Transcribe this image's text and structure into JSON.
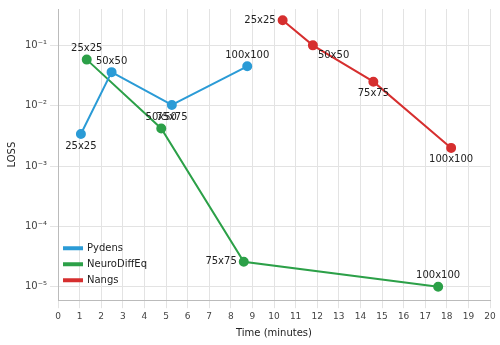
{
  "chart_data": {
    "type": "line",
    "x_label": "Time (minutes)",
    "y_label": "LOSS",
    "log": "y",
    "grid": true,
    "legend": "upper right",
    "marker": "circle",
    "xlim": [
      0,
      20
    ],
    "xticks": [
      0,
      1,
      2,
      3,
      4,
      5,
      6,
      7,
      8,
      9,
      10,
      11,
      12,
      13,
      14,
      15,
      16,
      17,
      18,
      19,
      20
    ],
    "ylim": [
      6e-06,
      0.4
    ],
    "yticks": [
      {
        "value": 1e-05,
        "label": "10⁻⁵"
      },
      {
        "value": 0.0001,
        "label": "10⁻⁴"
      },
      {
        "value": 0.001,
        "label": "10⁻³"
      },
      {
        "value": 0.01,
        "label": "10⁻²"
      },
      {
        "value": 0.1,
        "label": "10⁻¹"
      }
    ],
    "series": [
      {
        "name": "Pydens",
        "color": "#2b9bd6",
        "x": [
          1.06,
          2.48,
          5.27,
          8.76
        ],
        "values": [
          0.0034,
          0.036,
          0.0103,
          0.045
        ],
        "labels": [
          "25x25",
          "50x50",
          "75x75",
          "100x100"
        ]
      },
      {
        "name": "NeuroDiffEq",
        "color": "#2ca048",
        "x": [
          1.33,
          4.78,
          8.6,
          17.6
        ],
        "values": [
          0.058,
          0.0042,
          2.6e-05,
          1e-05
        ],
        "labels": [
          "25x25",
          "50x50",
          "75x75",
          "100x100"
        ]
      },
      {
        "name": "Nangs",
        "color": "#d62f2f",
        "x": [
          10.4,
          11.8,
          14.6,
          18.2
        ],
        "values": [
          0.26,
          0.1,
          0.025,
          0.002
        ],
        "labels": [
          "25x25",
          "50x50",
          "75x75",
          "100x100"
        ]
      }
    ]
  }
}
